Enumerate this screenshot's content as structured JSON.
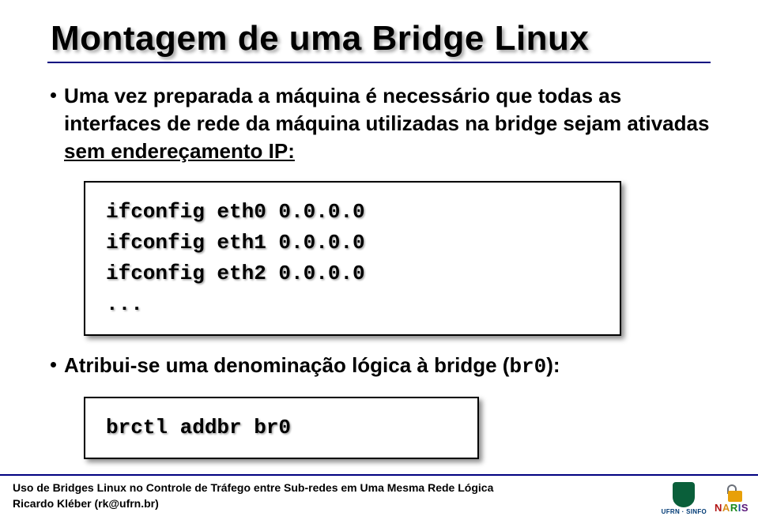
{
  "title": "Montagem de uma Bridge Linux",
  "bullets": [
    {
      "pre": "Uma vez preparada a máquina é necessário que todas as interfaces de rede da máquina utilizadas na bridge sejam ativadas ",
      "underlined": "sem endereçamento IP:"
    },
    {
      "pre": "Atribui-se uma denominação lógica à bridge (",
      "mono": "br0",
      "post": "):"
    }
  ],
  "code1": [
    "ifconfig eth0 0.0.0.0",
    "ifconfig eth1 0.0.0.0",
    "ifconfig eth2 0.0.0.0",
    "..."
  ],
  "code2": [
    "brctl addbr br0"
  ],
  "footer": {
    "line1": "Uso de Bridges Linux no Controle de Tráfego entre Sub-redes em Uma Mesma Rede Lógica",
    "line2": "Ricardo Kléber (rk@ufrn.br)"
  },
  "logos": {
    "ufrn_label": "UFRN · SINFO",
    "naris": "NARIS"
  },
  "colors": {
    "rule": "#000080",
    "shadow": "rgba(0,0,0,0.35)"
  }
}
